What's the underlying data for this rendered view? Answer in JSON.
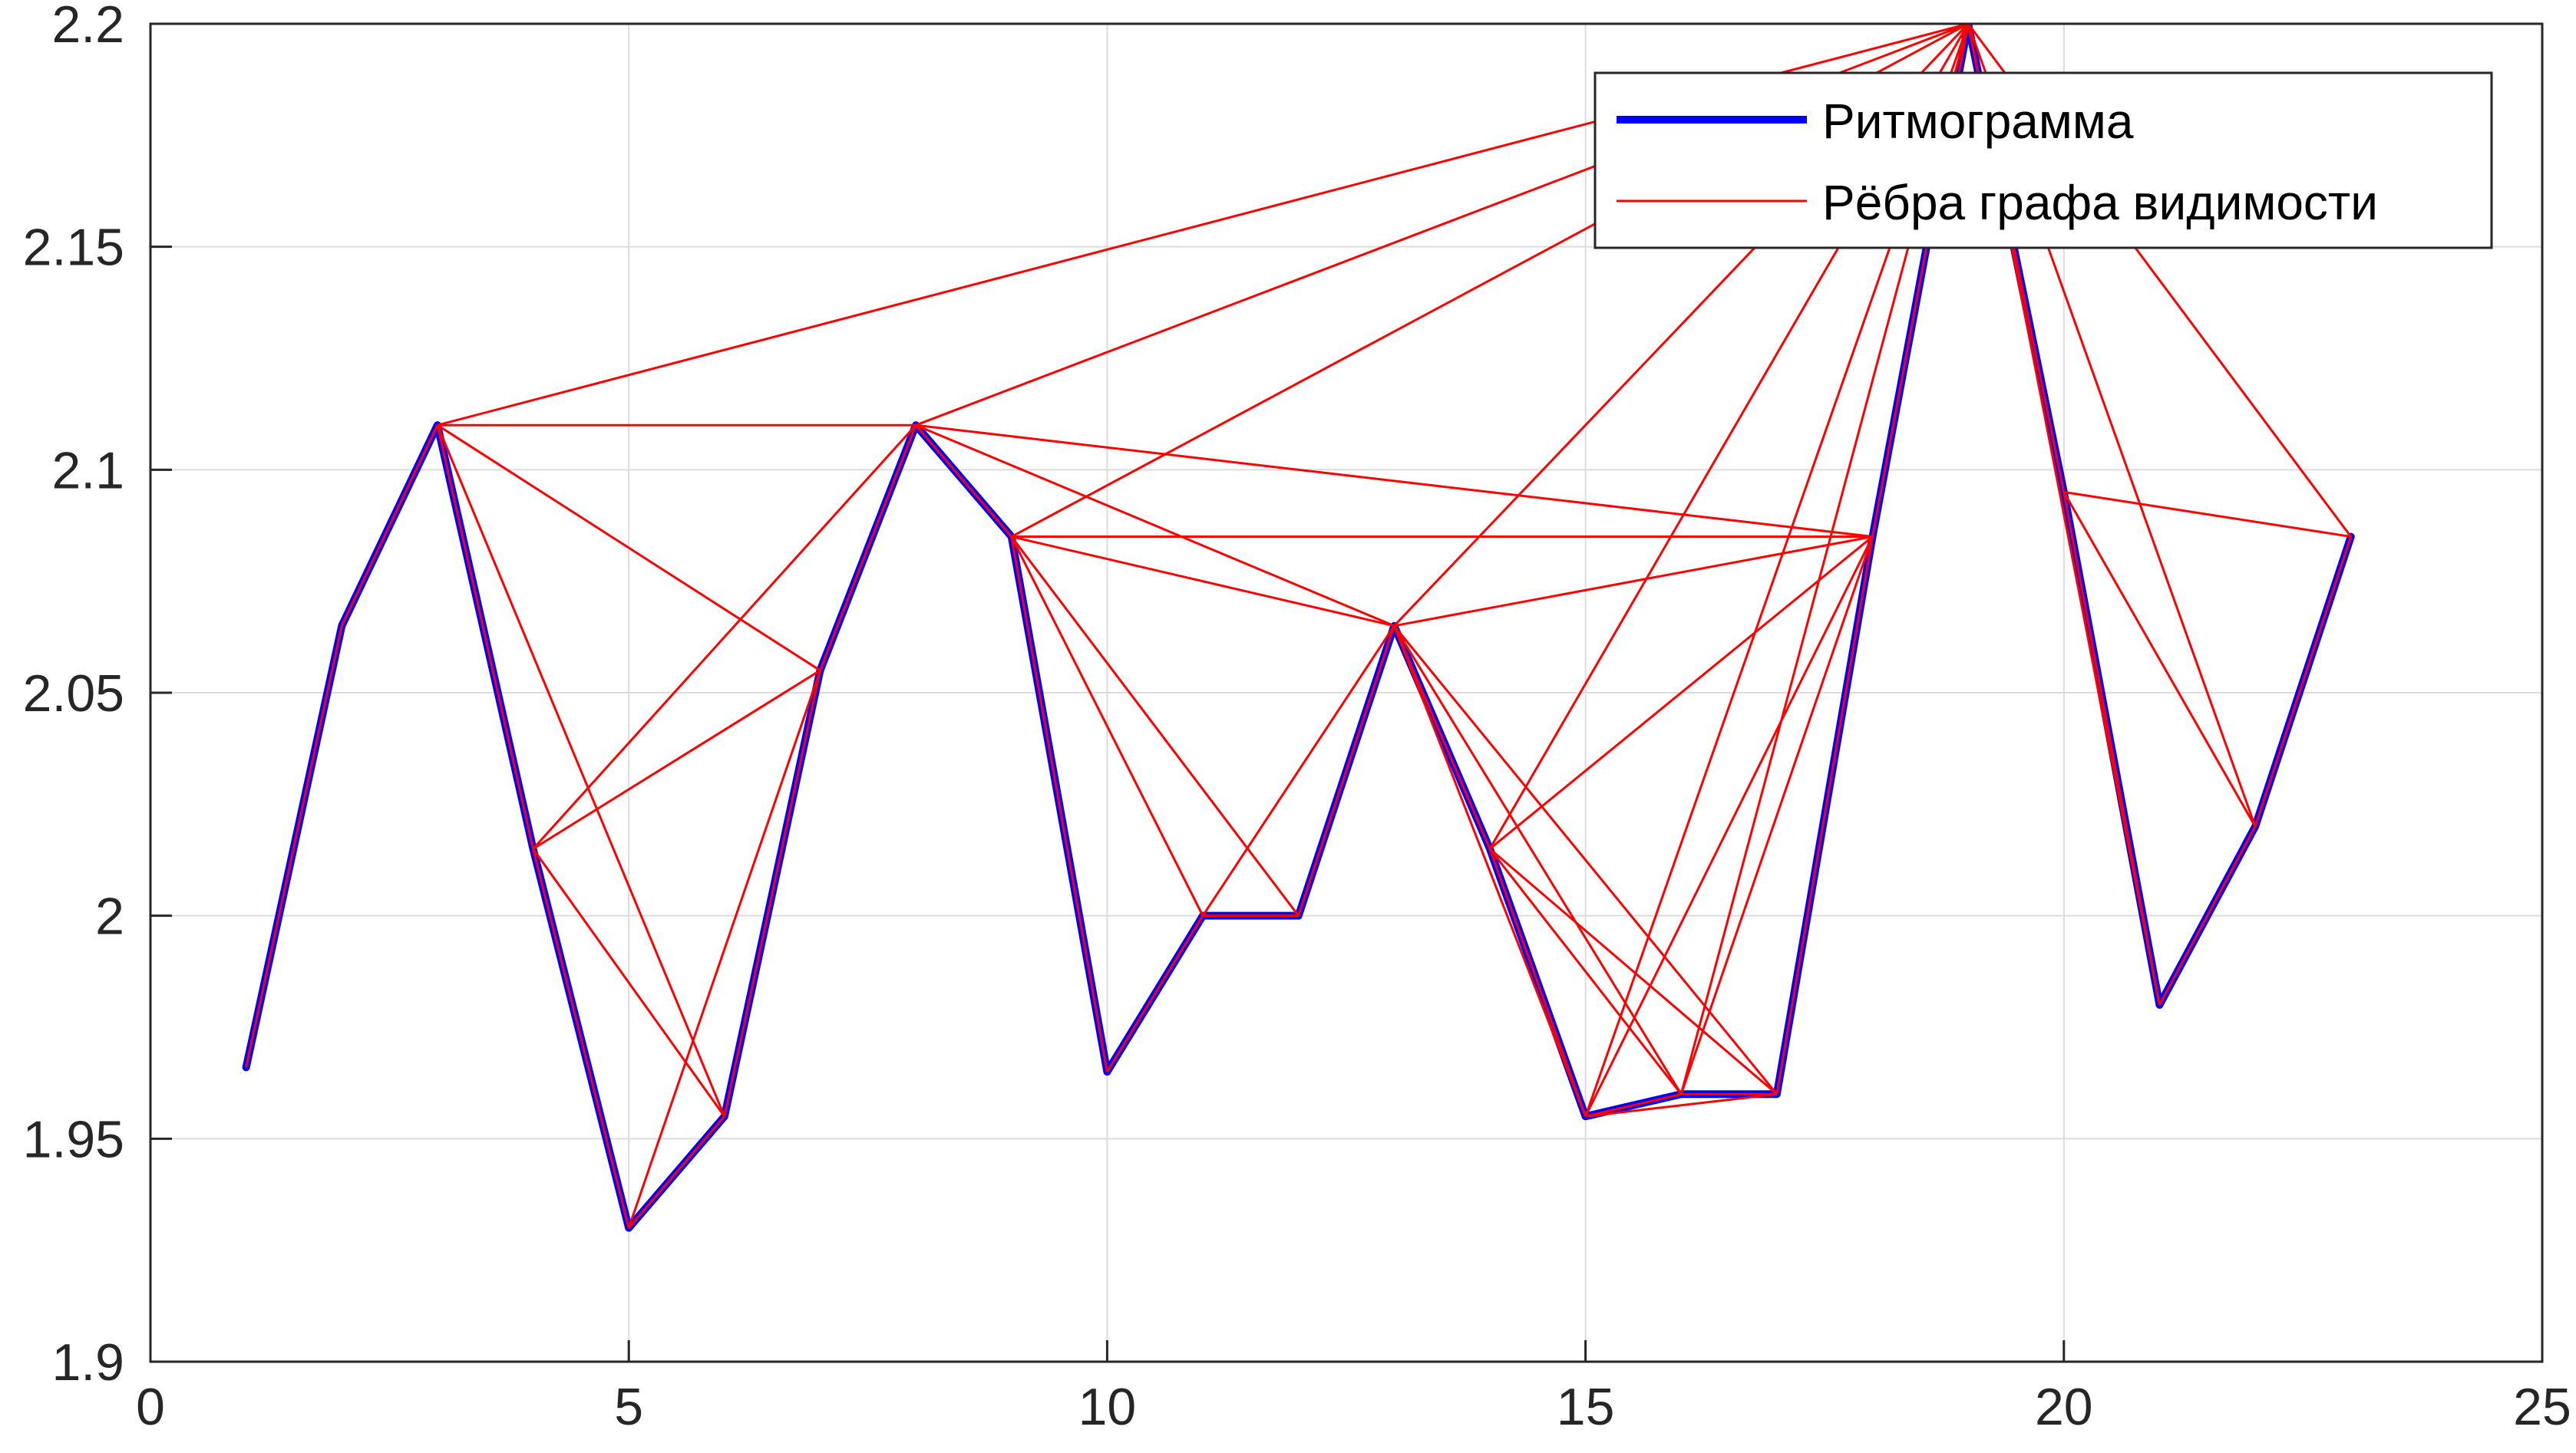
{
  "chart_data": {
    "type": "line",
    "xlim": [
      0,
      25
    ],
    "ylim": [
      1.9,
      2.2
    ],
    "grid": true,
    "legend_position": "top-right",
    "x_ticks": [
      "0",
      "5",
      "10",
      "15",
      "20",
      "25"
    ],
    "y_ticks": [
      "1.9",
      "1.95",
      "2",
      "2.05",
      "2.1",
      "2.15",
      "2.2"
    ],
    "series": [
      {
        "name": "Ритмограмма",
        "color": "#0000ff",
        "x": [
          1,
          2,
          3,
          4,
          5,
          6,
          7,
          8,
          9,
          10,
          11,
          12,
          13,
          14,
          15,
          16,
          17,
          18,
          19,
          20,
          21,
          22,
          23
        ],
        "y": [
          1.966,
          2.065,
          2.11,
          2.015,
          1.93,
          1.955,
          2.055,
          2.11,
          2.085,
          1.965,
          2.0,
          2.0,
          2.065,
          2.015,
          1.955,
          1.96,
          1.96,
          2.085,
          2.2,
          2.095,
          1.98,
          2.02,
          2.085
        ]
      },
      {
        "name": "Рёбра графа видимости",
        "color": "#ff0000",
        "edges": [
          [
            1,
            2
          ],
          [
            2,
            3
          ],
          [
            3,
            4
          ],
          [
            4,
            5
          ],
          [
            5,
            6
          ],
          [
            6,
            7
          ],
          [
            7,
            8
          ],
          [
            8,
            9
          ],
          [
            9,
            10
          ],
          [
            10,
            11
          ],
          [
            11,
            12
          ],
          [
            12,
            13
          ],
          [
            13,
            14
          ],
          [
            14,
            15
          ],
          [
            15,
            16
          ],
          [
            16,
            17
          ],
          [
            17,
            18
          ],
          [
            18,
            19
          ],
          [
            19,
            20
          ],
          [
            20,
            21
          ],
          [
            21,
            22
          ],
          [
            22,
            23
          ],
          [
            3,
            6
          ],
          [
            3,
            7
          ],
          [
            3,
            8
          ],
          [
            3,
            19
          ],
          [
            4,
            6
          ],
          [
            4,
            7
          ],
          [
            4,
            8
          ],
          [
            5,
            7
          ],
          [
            8,
            13
          ],
          [
            8,
            18
          ],
          [
            8,
            19
          ],
          [
            9,
            11
          ],
          [
            9,
            12
          ],
          [
            9,
            13
          ],
          [
            9,
            18
          ],
          [
            9,
            19
          ],
          [
            11,
            13
          ],
          [
            13,
            15
          ],
          [
            13,
            16
          ],
          [
            13,
            17
          ],
          [
            13,
            18
          ],
          [
            13,
            19
          ],
          [
            14,
            16
          ],
          [
            14,
            17
          ],
          [
            14,
            18
          ],
          [
            14,
            19
          ],
          [
            15,
            17
          ],
          [
            15,
            18
          ],
          [
            15,
            19
          ],
          [
            16,
            18
          ],
          [
            16,
            19
          ],
          [
            19,
            21
          ],
          [
            19,
            22
          ],
          [
            19,
            23
          ],
          [
            20,
            22
          ],
          [
            20,
            23
          ]
        ]
      }
    ]
  }
}
